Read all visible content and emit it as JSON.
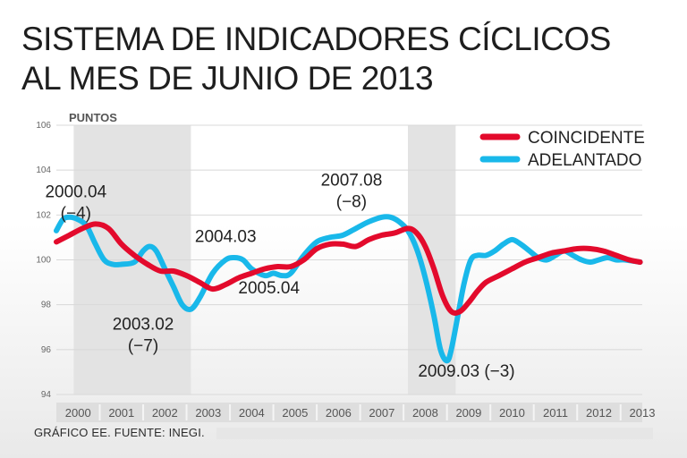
{
  "title": {
    "line1": "SISTEMA DE INDICADORES CÍCLICOS",
    "line2": "AL MES DE JUNIO DE 2013"
  },
  "source": "GRÁFICO EE. FUENTE: INEGI.",
  "colors": {
    "coincidente": "#e30a2c",
    "adelantado": "#19b8ea",
    "shade": "#e3e3e3",
    "axis_text": "#666666",
    "label_text": "#222222"
  },
  "chart_data": {
    "type": "line",
    "title": "SISTEMA DE INDICADORES CÍCLICOS AL MES DE JUNIO DE 2013",
    "ylabel": "PUNTOS",
    "xlabel": "",
    "ylim": [
      94,
      106
    ],
    "xlim": [
      2000.0,
      2013.5
    ],
    "y_ticks": [
      "94",
      "96",
      "98",
      "100",
      "102",
      "104",
      "106"
    ],
    "x_ticks": [
      "2000",
      "2001",
      "2002",
      "2003",
      "2004",
      "2005",
      "2006",
      "2007",
      "2008",
      "2009",
      "2010",
      "2011",
      "2012",
      "2013"
    ],
    "legend": {
      "placement": "top-right",
      "entries": [
        "COINCIDENTE",
        "ADELANTADO"
      ]
    },
    "shaded_periods": [
      [
        2000.4,
        2003.1
      ],
      [
        2008.1,
        2009.2
      ]
    ],
    "series": [
      {
        "name": "COINCIDENTE",
        "x": [
          2000.0,
          2000.3,
          2000.6,
          2000.9,
          2001.2,
          2001.5,
          2001.8,
          2002.1,
          2002.4,
          2002.7,
          2003.0,
          2003.3,
          2003.6,
          2003.9,
          2004.2,
          2004.5,
          2004.8,
          2005.1,
          2005.4,
          2005.7,
          2006.0,
          2006.3,
          2006.6,
          2006.9,
          2007.2,
          2007.5,
          2007.8,
          2008.1,
          2008.3,
          2008.5,
          2008.7,
          2008.9,
          2009.1,
          2009.3,
          2009.5,
          2009.7,
          2009.9,
          2010.2,
          2010.5,
          2010.8,
          2011.1,
          2011.4,
          2011.7,
          2012.0,
          2012.3,
          2012.6,
          2012.9,
          2013.2,
          2013.45
        ],
        "values": [
          100.8,
          101.1,
          101.4,
          101.6,
          101.4,
          100.7,
          100.2,
          99.8,
          99.5,
          99.5,
          99.3,
          99.0,
          98.7,
          98.9,
          99.2,
          99.4,
          99.6,
          99.7,
          99.7,
          100.0,
          100.5,
          100.7,
          100.7,
          100.6,
          100.9,
          101.1,
          101.2,
          101.4,
          101.2,
          100.6,
          99.6,
          98.4,
          97.7,
          97.7,
          98.1,
          98.6,
          99.0,
          99.3,
          99.6,
          99.9,
          100.1,
          100.3,
          100.4,
          100.5,
          100.5,
          100.4,
          100.2,
          100.0,
          99.9
        ]
      },
      {
        "name": "ADELANTADO",
        "x": [
          2000.0,
          2000.15,
          2000.3,
          2000.5,
          2000.7,
          2000.9,
          2001.1,
          2001.3,
          2001.5,
          2001.8,
          2002.0,
          2002.15,
          2002.3,
          2002.5,
          2002.7,
          2002.9,
          2003.1,
          2003.3,
          2003.6,
          2003.9,
          2004.1,
          2004.3,
          2004.5,
          2004.8,
          2005.0,
          2005.2,
          2005.4,
          2005.7,
          2006.0,
          2006.3,
          2006.6,
          2006.9,
          2007.2,
          2007.5,
          2007.7,
          2007.9,
          2008.1,
          2008.3,
          2008.5,
          2008.7,
          2008.85,
          2009.0,
          2009.1,
          2009.25,
          2009.4,
          2009.55,
          2009.7,
          2009.9,
          2010.1,
          2010.3,
          2010.5,
          2010.7,
          2010.9,
          2011.1,
          2011.3,
          2011.5,
          2011.7,
          2011.9,
          2012.1,
          2012.3,
          2012.5,
          2012.7,
          2012.9,
          2013.1,
          2013.45
        ],
        "values": [
          101.3,
          101.8,
          101.9,
          101.8,
          101.5,
          100.7,
          100.0,
          99.8,
          99.8,
          99.9,
          100.4,
          100.6,
          100.4,
          99.6,
          98.8,
          98.0,
          97.8,
          98.3,
          99.4,
          100.0,
          100.1,
          100.0,
          99.6,
          99.3,
          99.4,
          99.3,
          99.4,
          100.2,
          100.8,
          101.0,
          101.1,
          101.4,
          101.7,
          101.9,
          101.9,
          101.7,
          101.3,
          100.5,
          99.2,
          97.5,
          96.0,
          95.5,
          96.0,
          97.5,
          99.0,
          100.0,
          100.2,
          100.2,
          100.4,
          100.7,
          100.9,
          100.7,
          100.4,
          100.1,
          100.0,
          100.2,
          100.4,
          100.2,
          100.0,
          99.9,
          100.0,
          100.1,
          100.0,
          100.0,
          99.9
        ]
      }
    ],
    "annotations": [
      {
        "lines": [
          "2000.04",
          "(−4)"
        ],
        "x": 2000.45,
        "y": 102.8
      },
      {
        "lines": [
          "2003.02",
          "(−7)"
        ],
        "x": 2002.0,
        "y": 96.9
      },
      {
        "lines": [
          "2004.03"
        ],
        "x": 2003.9,
        "y": 100.8
      },
      {
        "lines": [
          "2005.04"
        ],
        "x": 2004.9,
        "y": 98.5
      },
      {
        "lines": [
          "2007.08",
          "(−8)"
        ],
        "x": 2006.8,
        "y": 103.3
      },
      {
        "lines": [
          "2009.03 (−3)"
        ],
        "x": 2009.45,
        "y": 94.8
      }
    ]
  }
}
